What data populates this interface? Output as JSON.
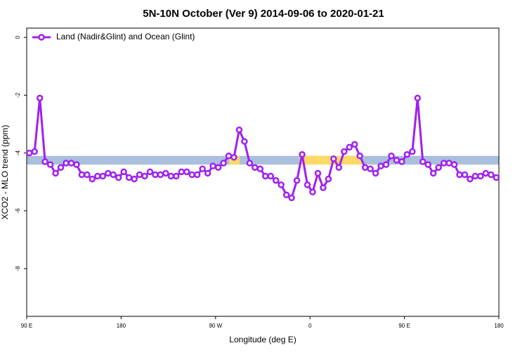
{
  "chart_data": {
    "type": "line",
    "title": "5N-10N October (Ver 9)   2014-09-06 to 2020-01-21",
    "x_label": "Longitude (deg E)",
    "y_label": "XCO2 - MLO trend (ppm)",
    "x": [
      92.5,
      97.5,
      102.5,
      107.5,
      112.5,
      117.5,
      122.5,
      127.5,
      132.5,
      137.5,
      142.5,
      147.5,
      152.5,
      157.5,
      162.5,
      167.5,
      172.5,
      177.5,
      182.5,
      187.5,
      192.5,
      197.5,
      202.5,
      207.5,
      212.5,
      217.5,
      222.5,
      227.5,
      232.5,
      237.5,
      242.5,
      247.5,
      252.5,
      257.5,
      262.5,
      267.5,
      272.5,
      277.5,
      282.5,
      287.5,
      292.5,
      297.5,
      302.5,
      307.5,
      312.5,
      317.5,
      322.5,
      327.5,
      332.5,
      337.5,
      342.5,
      347.5,
      352.5,
      357.5,
      362.5,
      367.5,
      372.5,
      377.5,
      382.5,
      387.5,
      392.5,
      397.5,
      402.5,
      407.5,
      412.5,
      417.5,
      422.5,
      427.5,
      432.5,
      437.5,
      442.5,
      447.5,
      452.5,
      457.5,
      462.5,
      467.5,
      472.5,
      477.5,
      482.5,
      487.5,
      492.5,
      497.5,
      502.5,
      507.5,
      512.5,
      517.5,
      522.5,
      527.5,
      532.5,
      537.5
    ],
    "series": [
      {
        "name": "Land (Nadir&Glint) and Ocean (Glint)",
        "color": "#a020f0",
        "values": [
          -4.0,
          -3.95,
          -2.1,
          -4.3,
          -4.4,
          -4.7,
          -4.5,
          -4.35,
          -4.35,
          -4.4,
          -4.75,
          -4.75,
          -4.9,
          -4.8,
          -4.8,
          -4.7,
          -4.75,
          -4.85,
          -4.65,
          -4.85,
          -4.9,
          -4.75,
          -4.8,
          -4.65,
          -4.75,
          -4.75,
          -4.7,
          -4.8,
          -4.8,
          -4.65,
          -4.65,
          -4.75,
          -4.75,
          -4.55,
          -4.7,
          -4.45,
          -4.5,
          -4.35,
          -4.1,
          -4.15,
          -3.2,
          -3.6,
          -4.35,
          -4.5,
          -4.55,
          -4.8,
          -4.8,
          -4.95,
          -5.1,
          -5.45,
          -5.55,
          -4.95,
          -4.05,
          -5.1,
          -5.35,
          -4.7,
          -5.2,
          -4.9,
          -4.2,
          -4.5,
          -3.95,
          -3.8,
          -3.7,
          -4.1,
          -4.5,
          -4.55,
          -4.7,
          -4.45,
          -4.4,
          -4.1,
          -4.25,
          -4.3,
          -4.05,
          -3.95,
          -2.1,
          -4.3,
          -4.4,
          -4.7,
          -4.5,
          -4.35,
          -4.35,
          -4.4,
          -4.75,
          -4.75,
          -4.9,
          -4.8,
          -4.8,
          -4.7,
          -4.75,
          -4.85
        ]
      }
    ],
    "xlim": [
      90,
      540
    ],
    "ylim": [
      -9.65,
      0.32
    ],
    "xticks": [
      {
        "value": 90,
        "label": "90 E"
      },
      {
        "value": 180,
        "label": "180"
      },
      {
        "value": 270,
        "label": "90 W"
      },
      {
        "value": 360,
        "label": "0"
      },
      {
        "value": 450,
        "label": "90 E"
      },
      {
        "value": 540,
        "label": "180"
      }
    ],
    "yticks": [
      0,
      -2,
      -4,
      -6,
      -8
    ],
    "band": {
      "ylim": [
        -4.4,
        -4.1
      ],
      "color": "#a9bfdc",
      "highlights": [
        {
          "xlim": [
            283,
            293
          ],
          "color": "#ffd966"
        },
        {
          "xlim": [
            350,
            410
          ],
          "color": "#ffd966"
        }
      ]
    },
    "legend": "top-left"
  }
}
